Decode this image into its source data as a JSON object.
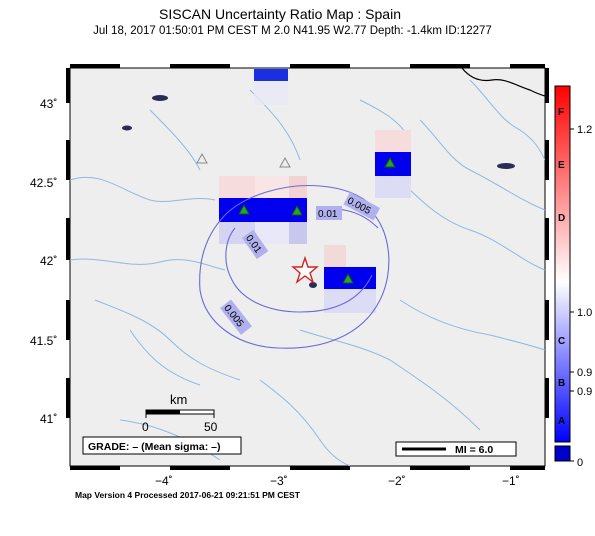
{
  "header": {
    "title": "SISCAN Uncertainty Ratio Map : Spain",
    "subtitle": "Jul 18, 2017 01:50:01 PM CEST   M 2.0   N41.95 W2.77   Depth: -1.4km   ID:12277"
  },
  "axes": {
    "y_ticks": [
      "43˚",
      "42.5˚",
      "42˚",
      "41.5˚",
      "41˚"
    ],
    "x_ticks": [
      "−4˚",
      "−3˚",
      "−2˚",
      "−1˚"
    ]
  },
  "contours": [
    "0.01",
    "0.01",
    "0.005",
    "0.005"
  ],
  "scale_bar": {
    "unit": "km",
    "start": "0",
    "end": "50"
  },
  "grade_box": "GRADE: – (Mean sigma: –)",
  "mi_legend": "MI = 6.0",
  "colorbar": {
    "letters": [
      "F",
      "E",
      "D",
      "C",
      "B",
      "A"
    ],
    "values": [
      "1.2",
      "1.0",
      "0.9",
      "0.9",
      "0"
    ],
    "colors": {
      "top": "#ff0000",
      "mid": "#ffffff",
      "bottom": "#0000ff",
      "base": "#0000cc"
    }
  },
  "footer": "Map Version 4 Processed 2017-06-21 09:21:51 PM CEST",
  "colors": {
    "land": "#eeeeee",
    "river": "#8fb8e0",
    "contour": "#6a6ad8",
    "cell_strong": "#0000ee",
    "station": "#22aa22",
    "epicenter": "#d22222"
  }
}
